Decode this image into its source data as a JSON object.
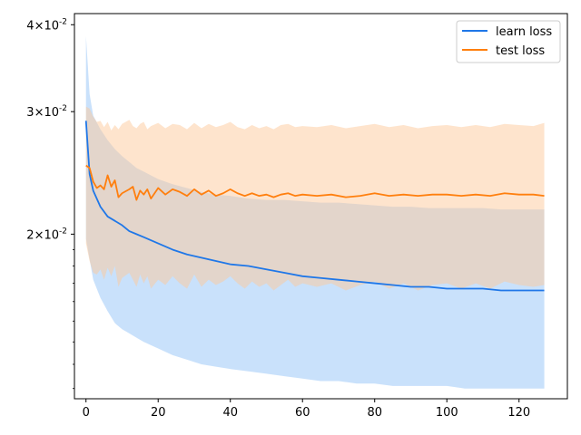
{
  "chart_data": {
    "type": "line",
    "title": "",
    "xlabel": "",
    "ylabel": "",
    "yscale": "log",
    "xlim": [
      -3.2,
      133.4
    ],
    "ylim": [
      0.0116,
      0.0415
    ],
    "grid": false,
    "legend_position": "top-right",
    "xticks": [
      {
        "value": 0,
        "label": "0"
      },
      {
        "value": 20,
        "label": "20"
      },
      {
        "value": 40,
        "label": "40"
      },
      {
        "value": 60,
        "label": "60"
      },
      {
        "value": 80,
        "label": "80"
      },
      {
        "value": 100,
        "label": "100"
      },
      {
        "value": 120,
        "label": "120"
      }
    ],
    "yticks": [
      {
        "value": 0.02,
        "base": "2",
        "exp": "-2"
      },
      {
        "value": 0.03,
        "base": "3",
        "exp": "-2"
      },
      {
        "value": 0.04,
        "base": "4",
        "exp": "-2"
      }
    ],
    "series": [
      {
        "name": "learn loss",
        "color": "#1f77e8",
        "band_color": "#94c4f7",
        "x": [
          0,
          1,
          2,
          4,
          6,
          8,
          10,
          12,
          14,
          16,
          20,
          24,
          28,
          32,
          36,
          40,
          45,
          50,
          55,
          60,
          65,
          70,
          75,
          80,
          85,
          90,
          95,
          100,
          105,
          110,
          115,
          120,
          127
        ],
        "y": [
          0.0291,
          0.0244,
          0.0231,
          0.0219,
          0.0212,
          0.0209,
          0.0206,
          0.0202,
          0.02,
          0.0198,
          0.0194,
          0.019,
          0.0187,
          0.0185,
          0.0183,
          0.0181,
          0.018,
          0.0178,
          0.0176,
          0.0174,
          0.0173,
          0.0172,
          0.0171,
          0.017,
          0.0169,
          0.0168,
          0.0168,
          0.0167,
          0.0167,
          0.0167,
          0.0166,
          0.0166,
          0.0166
        ],
        "upper": [
          0.0385,
          0.0318,
          0.0296,
          0.0283,
          0.0273,
          0.0265,
          0.0259,
          0.0254,
          0.0249,
          0.0246,
          0.024,
          0.0236,
          0.0233,
          0.023,
          0.0228,
          0.0227,
          0.0225,
          0.0224,
          0.0224,
          0.0223,
          0.0222,
          0.0222,
          0.0221,
          0.022,
          0.0219,
          0.0219,
          0.0218,
          0.0218,
          0.0218,
          0.0218,
          0.0217,
          0.0217,
          0.0217
        ],
        "lower": [
          0.0197,
          0.0184,
          0.0172,
          0.0162,
          0.0155,
          0.0149,
          0.0146,
          0.0144,
          0.0142,
          0.014,
          0.0137,
          0.0134,
          0.0132,
          0.013,
          0.0129,
          0.0128,
          0.0127,
          0.0126,
          0.0125,
          0.0124,
          0.0123,
          0.0123,
          0.0122,
          0.0122,
          0.0121,
          0.0121,
          0.0121,
          0.0121,
          0.012,
          0.012,
          0.012,
          0.012,
          0.012
        ]
      },
      {
        "name": "test loss",
        "color": "#ff7f0e",
        "band_color": "#fdc99c",
        "x": [
          0,
          1,
          2,
          3,
          4,
          5,
          6,
          7,
          8,
          9,
          10,
          12,
          13,
          14,
          15,
          16,
          17,
          18,
          20,
          22,
          24,
          26,
          28,
          30,
          32,
          34,
          36,
          38,
          40,
          42,
          44,
          46,
          48,
          50,
          52,
          54,
          56,
          58,
          60,
          64,
          68,
          72,
          76,
          80,
          84,
          88,
          92,
          96,
          100,
          104,
          108,
          112,
          116,
          120,
          124,
          127
        ],
        "y": [
          0.0251,
          0.0249,
          0.0238,
          0.0233,
          0.0235,
          0.0232,
          0.0243,
          0.0234,
          0.0239,
          0.0226,
          0.0229,
          0.0232,
          0.0234,
          0.0224,
          0.0231,
          0.0228,
          0.0232,
          0.0225,
          0.0233,
          0.0228,
          0.0232,
          0.023,
          0.0227,
          0.0232,
          0.0228,
          0.0231,
          0.0227,
          0.0229,
          0.0232,
          0.0229,
          0.0227,
          0.0229,
          0.0227,
          0.0228,
          0.0226,
          0.0228,
          0.0229,
          0.0227,
          0.0228,
          0.0227,
          0.0228,
          0.0226,
          0.0227,
          0.0229,
          0.0227,
          0.0228,
          0.0227,
          0.0228,
          0.0228,
          0.0227,
          0.0228,
          0.0227,
          0.0229,
          0.0228,
          0.0228,
          0.0227
        ],
        "upper": [
          0.0305,
          0.0303,
          0.0295,
          0.029,
          0.0291,
          0.0285,
          0.029,
          0.0282,
          0.0287,
          0.0283,
          0.0288,
          0.0292,
          0.0286,
          0.0284,
          0.0288,
          0.029,
          0.0283,
          0.0286,
          0.0289,
          0.0284,
          0.0288,
          0.0287,
          0.0283,
          0.0289,
          0.0284,
          0.0288,
          0.0285,
          0.0287,
          0.029,
          0.0285,
          0.0283,
          0.0287,
          0.0284,
          0.0286,
          0.0283,
          0.0287,
          0.0288,
          0.0285,
          0.0286,
          0.0285,
          0.0287,
          0.0284,
          0.0286,
          0.0288,
          0.0285,
          0.0287,
          0.0284,
          0.0286,
          0.0287,
          0.0285,
          0.0287,
          0.0285,
          0.0288,
          0.0287,
          0.0286,
          0.0289
        ],
        "lower": [
          0.0194,
          0.0183,
          0.0176,
          0.0175,
          0.0178,
          0.0172,
          0.0179,
          0.0174,
          0.018,
          0.0168,
          0.0173,
          0.0176,
          0.0172,
          0.0168,
          0.0175,
          0.017,
          0.0174,
          0.0167,
          0.0172,
          0.0169,
          0.0174,
          0.017,
          0.0167,
          0.0175,
          0.0168,
          0.0172,
          0.0169,
          0.0171,
          0.0174,
          0.017,
          0.0167,
          0.0171,
          0.0168,
          0.017,
          0.0166,
          0.0169,
          0.0172,
          0.0168,
          0.017,
          0.0168,
          0.017,
          0.0166,
          0.0169,
          0.0171,
          0.0167,
          0.017,
          0.0166,
          0.0169,
          0.017,
          0.0167,
          0.017,
          0.0167,
          0.0171,
          0.0169,
          0.0168,
          0.0169
        ]
      }
    ]
  }
}
